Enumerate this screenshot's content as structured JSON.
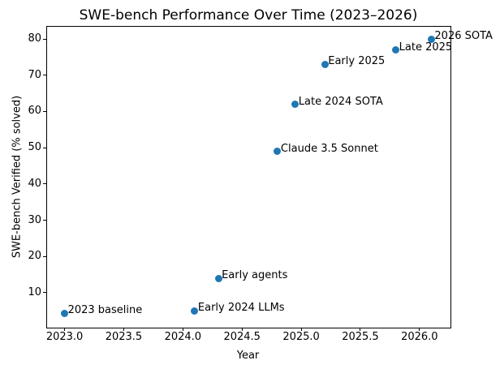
{
  "chart_data": {
    "type": "scatter",
    "title": "SWE-bench Performance Over Time (2023–2026)",
    "xlabel": "Year",
    "ylabel": "SWE-bench Verified (% solved)",
    "points": [
      {
        "x": 2023.0,
        "y": 4.4,
        "label": "2023 baseline"
      },
      {
        "x": 2024.1,
        "y": 5.0,
        "label": "Early 2024 LLMs"
      },
      {
        "x": 2024.3,
        "y": 14.0,
        "label": "Early agents"
      },
      {
        "x": 2024.8,
        "y": 49.0,
        "label": "Claude 3.5 Sonnet"
      },
      {
        "x": 2024.95,
        "y": 62.0,
        "label": "Late 2024 SOTA"
      },
      {
        "x": 2025.2,
        "y": 73.0,
        "label": "Early 2025"
      },
      {
        "x": 2025.8,
        "y": 77.0,
        "label": "Late 2025"
      },
      {
        "x": 2026.1,
        "y": 80.0,
        "label": "2026 SOTA"
      }
    ],
    "xticks": [
      2023.0,
      2023.5,
      2024.0,
      2024.5,
      2025.0,
      2025.5,
      2026.0
    ],
    "yticks": [
      10,
      20,
      30,
      40,
      50,
      60,
      70,
      80
    ],
    "xlim": [
      2022.845,
      2026.255
    ],
    "ylim": [
      0.6,
      83.6
    ],
    "grid": false,
    "legend": false,
    "marker_color": "#1f77b4",
    "axis_color": "#000000",
    "background_color": "#ffffff"
  }
}
